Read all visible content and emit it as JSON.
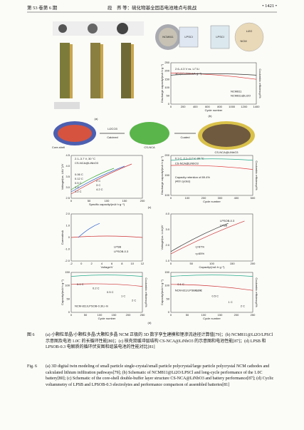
{
  "header": {
    "issue": "第 53 卷第 6 期",
    "running_title": "段　荞 等：硫化物基全固态电池难点与挑战",
    "page": "• 1421 •"
  },
  "figure": {
    "labels": {
      "a": "(a)",
      "b": "(b)",
      "c": "(c)",
      "d": "(d)"
    },
    "schematic_b": {
      "core": "NCM811",
      "shell": "LPSCl",
      "coating": "Li2O",
      "ncm": "NCM",
      "lpscl": "LPSCl"
    },
    "schematic_c": {
      "core_shell": "Core-shell",
      "reagent": "Li2CO3",
      "step1": "Calcined",
      "product1": "CS-NCA",
      "step2": "Coated",
      "product2": "CS-NCA@LiNbO3"
    },
    "plots": {
      "b": {
        "x_label": "Cycle number",
        "y_label": "Discharge capacity/(mA·h·g⁻¹)",
        "y2_label": "Coulombic efficiency/%",
        "x_ticks": [
          "0",
          "200",
          "400",
          "600",
          "800",
          "1000",
          "1200",
          "1400"
        ],
        "y_ticks": [
          "0",
          "50",
          "100",
          "150",
          "200",
          "250"
        ],
        "notes": [
          "2.6–4.3 V vs. Li⁺/Li",
          "1C (1C=200 mA·g⁻¹)",
          "NCM811",
          "NCM811@Li2O"
        ]
      },
      "c_left": {
        "x_label": "Specific capacity/(mA·h·g⁻¹)",
        "y_label": "Voltage/(vs. Li/Li⁺)/V",
        "x_ticks": [
          "0",
          "50",
          "100",
          "150",
          "200"
        ],
        "y_ticks": [
          "2.5",
          "3.0",
          "3.5",
          "4.0",
          "4.5"
        ],
        "notes": [
          "2.1–3.7 V, 30 °C",
          "CS-NCA@LiNbO3",
          "0.06 C",
          "0.12 C",
          "0.5 C",
          "1 C",
          "1.2 C",
          "2 C",
          "3 C",
          "4.2 C"
        ]
      },
      "c_right": {
        "x_label": "Cycle number",
        "y_label": "Discharge capacity/(mA·h·g⁻¹)",
        "y2_label": "Coulombic efficiency/%",
        "x_ticks": [
          "0",
          "100",
          "200",
          "300",
          "400",
          "500"
        ],
        "y_ticks": [
          "100",
          "150",
          "200"
        ],
        "notes": [
          "0.1 C, 2.1–3.7 V, 30 °C",
          "CS-NCA@LiNbO3",
          "Capacity retention of 89.4%",
          "(400 cycles)"
        ]
      },
      "d_cv": {
        "x_label": "Voltage/V",
        "y_label": "Current/mA",
        "x_ticks": [
          "-2",
          "0",
          "2",
          "4",
          "6",
          "8",
          "10",
          "12"
        ],
        "y_ticks": [
          "-2.0",
          "-1.0",
          "0",
          "1.0",
          "2.0"
        ],
        "notes": [
          "LPSB",
          "LPSOB-0.3"
        ]
      },
      "d_vc": {
        "x_label": "Capacity/(mA·h·g⁻¹)",
        "y_label": "Voltage/(vs. Li-In)/V",
        "x_ticks": [
          "0",
          "50",
          "100",
          "150",
          "200"
        ],
        "y_ticks": [
          "1.0",
          "2.0",
          "3.0",
          "4.0"
        ],
        "notes": [
          "LPSOB-0.3",
          "LPSB",
          "η=87%",
          "η=65%"
        ]
      },
      "d_rate1": {
        "x_label": "Cycle number",
        "y_label": "Capacity/(mA·h·g⁻¹)",
        "y2_label": "Coulombic efficiency/%",
        "x_ticks": [
          "0",
          "50",
          "100",
          "150",
          "200",
          "250"
        ],
        "y_ticks": [
          "0",
          "50",
          "100",
          "150"
        ],
        "notes": [
          "NCM-811/LPSOB-0.3/Li-In",
          "0.1 C",
          "0.2 C",
          "0.5 C",
          "1 C",
          "2 C"
        ]
      },
      "d_rate2": {
        "x_label": "Cycle number",
        "y_label": "Capacity/(mA·h·g⁻¹)",
        "y2_label": "Coulombic efficiency/%",
        "x_ticks": [
          "0",
          "50",
          "100",
          "150",
          "200",
          "250"
        ],
        "y_ticks": [
          "0",
          "50",
          "100",
          "150"
        ],
        "notes": [
          "NCM-811/LPSB/Li-In",
          "0.1 C",
          "0.2 C",
          "0.5 C",
          "1 C",
          "2 C"
        ]
      }
    }
  },
  "caption_zh": {
    "label": "图 6",
    "text": "(a) 小颗粒单晶/小颗粒多晶/大颗粒多晶 NCM 正极的 3D 数字孪生建模和锂渗流途径计算值[79]；(b) NCM811@Li2O/LPSCl 示意图及电池 1.0C 的长循环性能[80]；(c) 核壳双缓冲层结构 CS-NCA@LiNbO3 的示意图和电池性能[87]；(d) LPSB 和 LPSOB-0.3 电解质的循环伏安图和组装电池的性能对比[81]"
  },
  "caption_en": {
    "label": "Fig. 6",
    "text": "(a) 3D digital twin modeling of small particle single-crystal/small particle polycrystal/large particle polycrystal NCM cathodes and calculated lithium infiltration pathways[79]; (b) Schematic of NCM811@Li2O/LPSCl and long-cycle performance of the 1.0C battery[80]; (c) Schematic of the core-shell double-buffer layer structure CS-NCA@LiNbO3 and battery performance[87]; (d) Cyclic voltammetry of LPSB and LPSOB-0.3 electrolytes and performance comparison of assembled batteries[81]"
  }
}
